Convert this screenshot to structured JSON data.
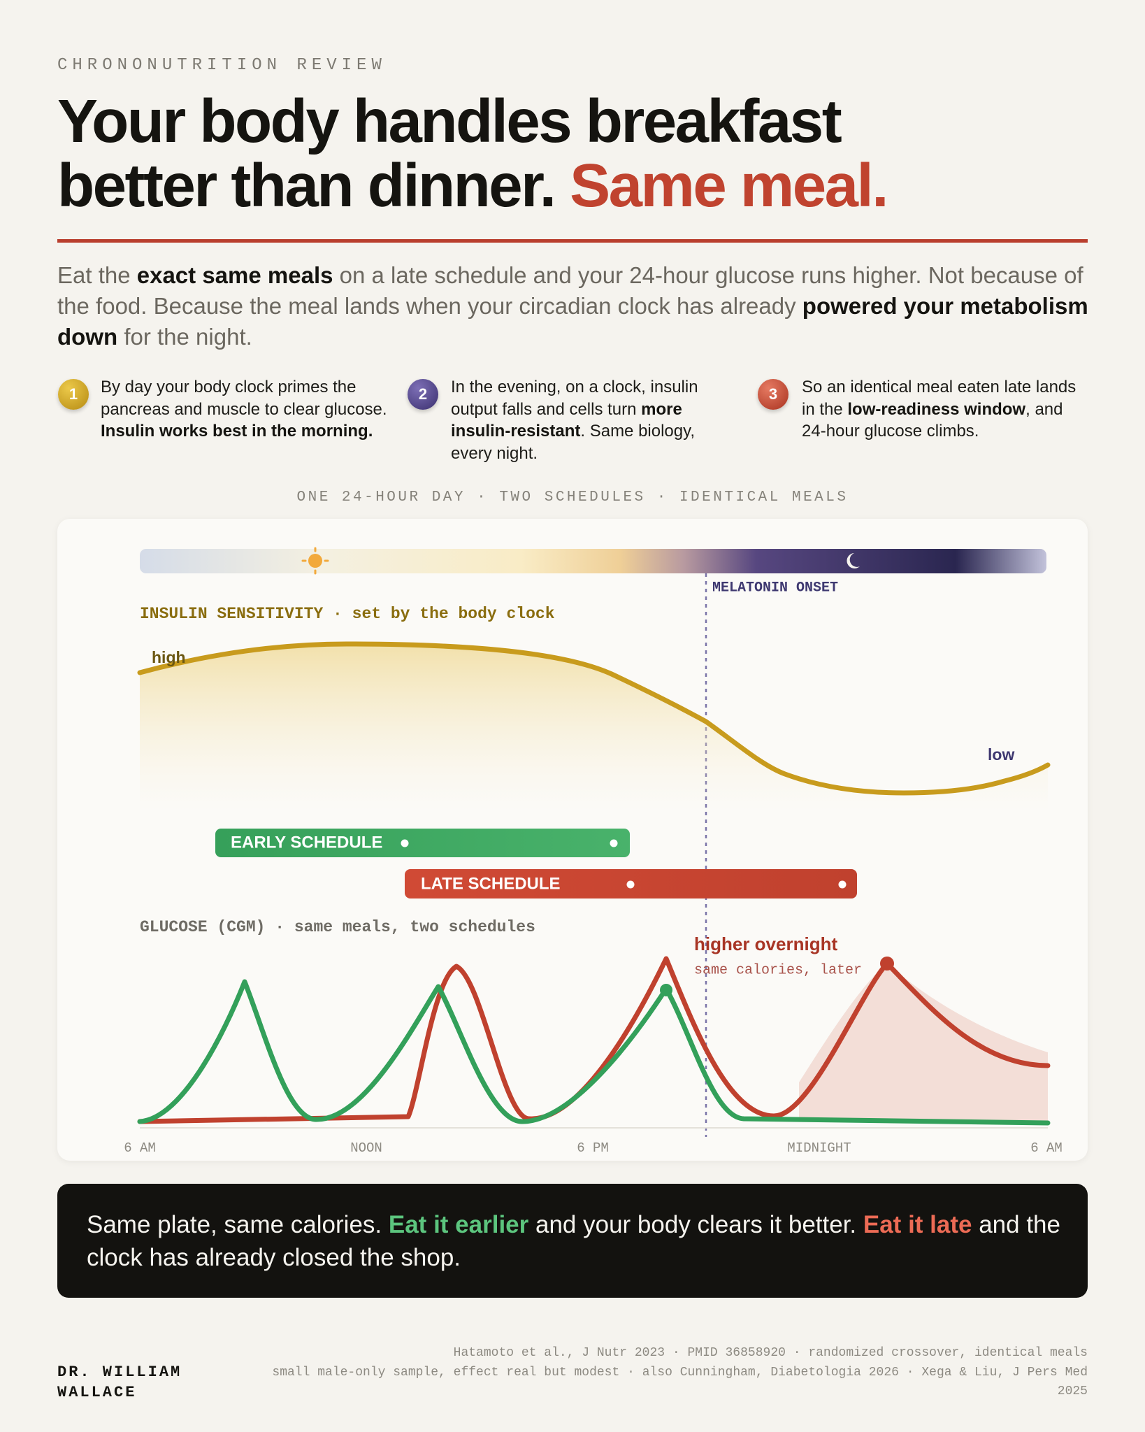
{
  "kicker": "CHRONONUTRITION REVIEW",
  "title": {
    "line1": "Your body handles breakfast",
    "line2": "better than dinner.",
    "accent": "Same meal."
  },
  "lede": [
    {
      "text": "Eat the ",
      "style": "plain"
    },
    {
      "text": "exact same meals",
      "style": "bold"
    },
    {
      "text": " on a late schedule and your 24-hour glucose runs higher. Not because of the food. Because the meal lands when your circadian clock has already ",
      "style": "plain"
    },
    {
      "text": "powered your metabolism down",
      "style": "bold"
    },
    {
      "text": " for the night.",
      "style": "plain"
    }
  ],
  "steps": [
    {
      "number": 1,
      "text": [
        {
          "text": "By day your body clock primes the pancreas and muscle to clear glucose. ",
          "style": "plain"
        },
        {
          "text": "Insulin works best in the morning.",
          "style": "bold"
        }
      ]
    },
    {
      "number": 2,
      "text": [
        {
          "text": "In the evening, on a clock, insulin output falls and cells turn ",
          "style": "plain"
        },
        {
          "text": "more insulin-resistant",
          "style": "bold"
        },
        {
          "text": ". Same biology, every night.",
          "style": "plain"
        }
      ]
    },
    {
      "number": 3,
      "text": [
        {
          "text": "So an identical meal eaten late lands in the ",
          "style": "plain"
        },
        {
          "text": "low-readiness window",
          "style": "bold"
        },
        {
          "text": ", and 24-hour glucose climbs.",
          "style": "plain"
        }
      ]
    }
  ],
  "section_label": "ONE 24-HOUR DAY · TWO SCHEDULES · IDENTICAL MEALS",
  "chart": {
    "melatonin": "MELATONIN ONSET",
    "insulin_label": "INSULIN SENSITIVITY · set by the body clock",
    "high": "high",
    "low": "low",
    "early": "EARLY SCHEDULE",
    "late": "LATE SCHEDULE",
    "glucose_label": "GLUCOSE (CGM) · same meals, two schedules",
    "annotation": "higher overnight",
    "annotation_sub": "same calories, later",
    "x_labels": [
      "6 AM",
      "NOON",
      "6 PM",
      "MIDNIGHT",
      "6 AM"
    ]
  },
  "callout": [
    {
      "text": "Same plate, same calories. ",
      "style": "plain"
    },
    {
      "text": "Eat it earlier",
      "style": "green"
    },
    {
      "text": " and your body clears it better. ",
      "style": "plain"
    },
    {
      "text": "Eat it late",
      "style": "red"
    },
    {
      "text": " and the clock has already closed the shop.",
      "style": "plain"
    }
  ],
  "author": [
    "DR. WILLIAM",
    "WALLACE"
  ],
  "citations": [
    "Hatamoto et al., J Nutr 2023 · PMID 36858920 · randomized crossover, identical meals",
    "small male-only sample, effect real but modest · also Cunningham, Diabetologia 2026 · Xega & Liu, J Pers Med 2025"
  ]
}
